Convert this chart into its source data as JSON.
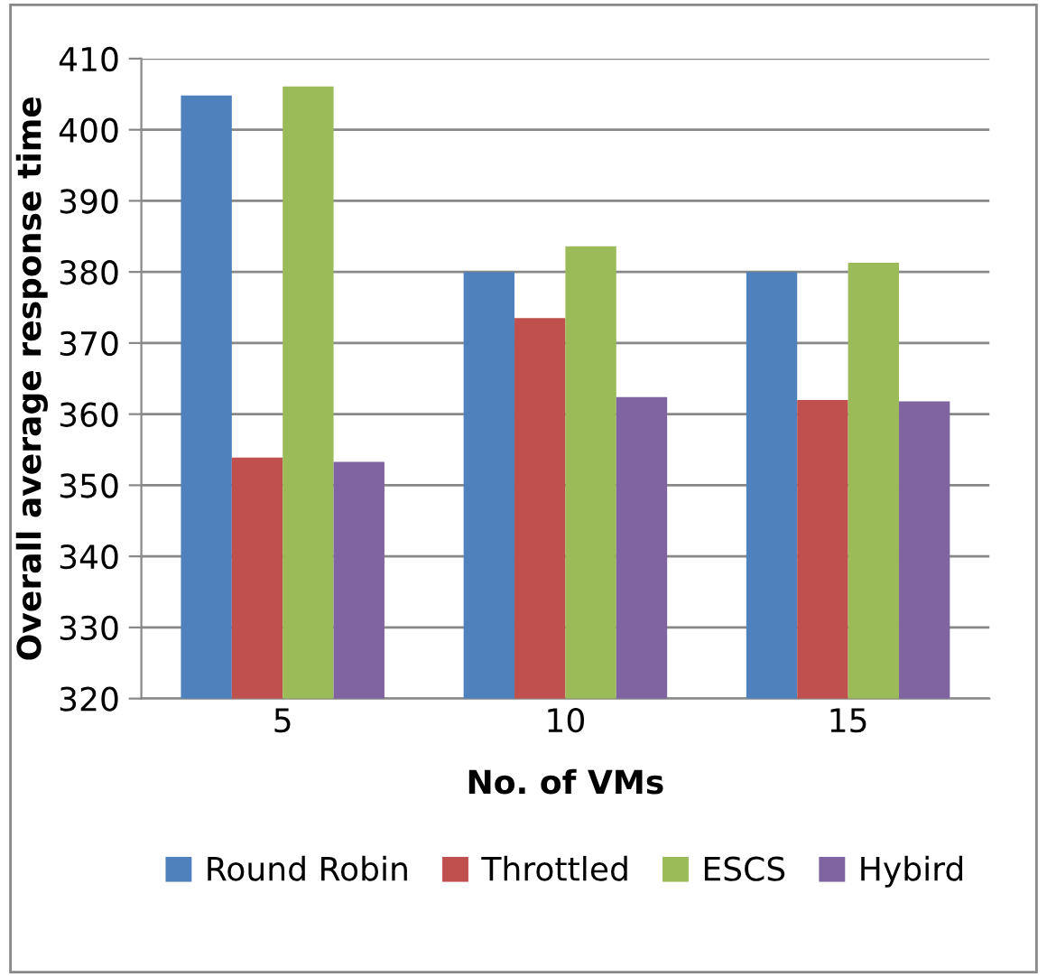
{
  "chart_data": {
    "type": "bar",
    "xlabel": "No. of VMs",
    "ylabel": "Overall average response time",
    "categories": [
      "5",
      "10",
      "15"
    ],
    "series": [
      {
        "name": "Round Robin",
        "color": "#4f81bd",
        "values": [
          404.8,
          380,
          380
        ]
      },
      {
        "name": "Throttled",
        "color": "#c0504d",
        "values": [
          353.9,
          373.5,
          362.0
        ]
      },
      {
        "name": "ESCS",
        "color": "#9bbb59",
        "values": [
          406.1,
          383.6,
          381.3
        ]
      },
      {
        "name": "Hybird",
        "color": "#8064a2",
        "values": [
          353.3,
          362.4,
          361.8
        ]
      }
    ],
    "ylim": [
      320,
      410
    ],
    "yticks": [
      320,
      330,
      340,
      350,
      360,
      370,
      380,
      390,
      400,
      410
    ],
    "grid": "y",
    "legend": "bottom"
  }
}
